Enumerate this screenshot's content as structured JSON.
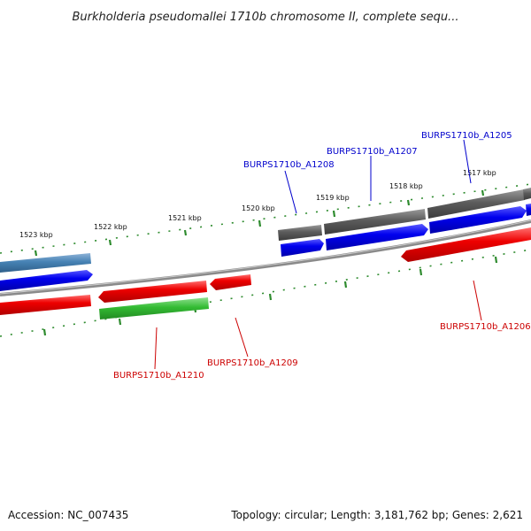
{
  "title": "Burkholderia pseudomallei 1710b chromosome II, complete sequ...",
  "footer": {
    "accession": "Accession: NC_007435",
    "summary": "Topology: circular; Length: 3,181,762 bp; Genes: 2,621"
  },
  "colors": {
    "backbone": "#8a8a8a",
    "tick_dots": "#2e8b2e",
    "forward_cds": "#0000ee",
    "reverse_cds": "#ee0000",
    "gene_forward": "#5a5a5a",
    "gene_reverse": "#4682b4",
    "rna_green": "#33bb33",
    "label_blue": "#0000cc",
    "label_red": "#cc0000"
  },
  "scale_labels": [
    "1523 kbp",
    "1522 kbp",
    "1521 kbp",
    "1520 kbp",
    "1519 kbp",
    "1518 kbp",
    "1517 kbp"
  ],
  "gene_labels": [
    {
      "id": "a1205",
      "text": "BURPS1710b_A1205",
      "color": "blue"
    },
    {
      "id": "a1207",
      "text": "BURPS1710b_A1207",
      "color": "blue"
    },
    {
      "id": "a1208",
      "text": "BURPS1710b_A1208",
      "color": "blue"
    },
    {
      "id": "a1206",
      "text": "BURPS1710b_A1206",
      "color": "red"
    },
    {
      "id": "a1209",
      "text": "BURPS1710b_A1209",
      "color": "red"
    },
    {
      "id": "a1210",
      "text": "BURPS1710b_A1210",
      "color": "red"
    }
  ]
}
